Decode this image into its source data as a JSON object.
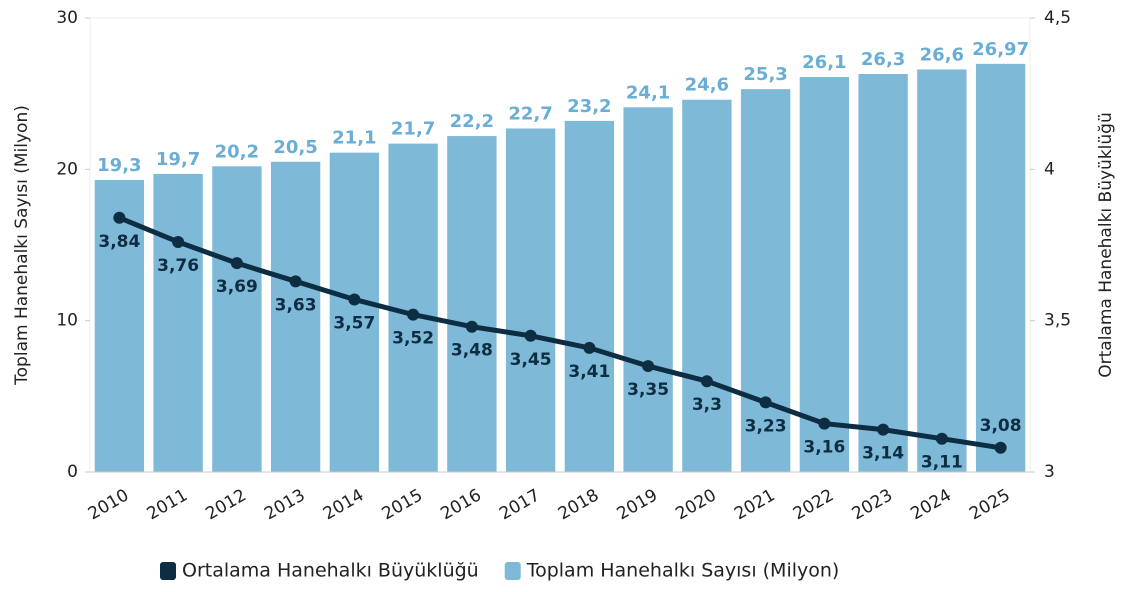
{
  "chart_data": {
    "type": "bar",
    "categories": [
      "2010",
      "2011",
      "2012",
      "2013",
      "2014",
      "2015",
      "2016",
      "2017",
      "2018",
      "2019",
      "2020",
      "2021",
      "2022",
      "2023",
      "2024",
      "2025"
    ],
    "series": [
      {
        "name": "Ortalama Hanehalkı Büyüklüğü",
        "type": "line",
        "axis": "y2",
        "color": "#0d2d42",
        "values": [
          3.84,
          3.76,
          3.69,
          3.63,
          3.57,
          3.52,
          3.48,
          3.45,
          3.41,
          3.35,
          3.3,
          3.23,
          3.16,
          3.14,
          3.11,
          3.08
        ],
        "value_labels": [
          "3,84",
          "3,76",
          "3,69",
          "3,63",
          "3,57",
          "3,52",
          "3,48",
          "3,45",
          "3,41",
          "3,35",
          "3,3",
          "3,23",
          "3,16",
          "3,14",
          "3,11",
          "3,08"
        ]
      },
      {
        "name": "Toplam Hanehalkı Sayısı (Milyon)",
        "type": "bar",
        "color": "#7fb9d8",
        "values": [
          19.3,
          19.7,
          20.2,
          20.5,
          21.1,
          21.7,
          22.2,
          22.7,
          23.2,
          24.1,
          24.6,
          25.3,
          26.1,
          26.3,
          26.6,
          26.97
        ],
        "value_labels": [
          "19,3",
          "19,7",
          "20,2",
          "20,5",
          "21,1",
          "21,7",
          "22,2",
          "22,7",
          "23,2",
          "24,1",
          "24,6",
          "25,3",
          "26,1",
          "26,3",
          "26,6",
          "26,97"
        ]
      }
    ],
    "ylabel": "Toplam Hanehalkı Sayısı (Milyon)",
    "y2label": "Ortalama Hanehalkı Büyüklüğü",
    "ylim": [
      0,
      30
    ],
    "yticks": [
      0,
      10,
      20,
      30
    ],
    "y2lim": [
      3,
      4.5
    ],
    "y2ticks": [
      3,
      {
        "value": 3.5,
        "label": "3,5"
      },
      4,
      {
        "value": 4.5,
        "label": "4,5"
      }
    ],
    "legend": "bottom"
  }
}
